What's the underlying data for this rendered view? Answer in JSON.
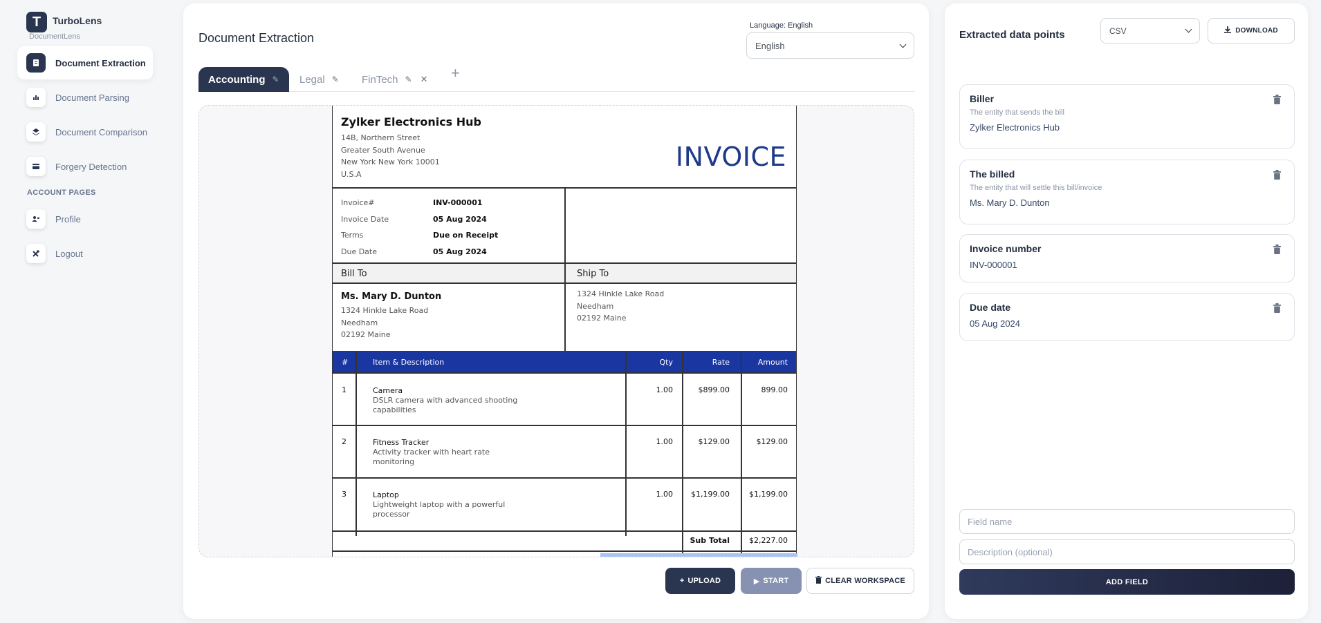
{
  "brand": {
    "name": "TurboLens",
    "sub": "DocumentLens"
  },
  "sidebar": {
    "items": [
      {
        "label": "Document Extraction",
        "icon": "document-icon"
      },
      {
        "label": "Document Parsing",
        "icon": "chart-icon"
      },
      {
        "label": "Document Comparison",
        "icon": "layers-icon"
      },
      {
        "label": "Forgery Detection",
        "icon": "card-icon"
      }
    ],
    "section": "ACCOUNT PAGES",
    "account": [
      {
        "label": "Profile",
        "icon": "user-icon"
      },
      {
        "label": "Logout",
        "icon": "tools-icon"
      }
    ]
  },
  "main": {
    "title": "Document Extraction",
    "language_label": "Language: English",
    "language_value": "English",
    "tabs": [
      {
        "label": "Accounting"
      },
      {
        "label": "Legal"
      },
      {
        "label": "FinTech"
      }
    ],
    "buttons": {
      "upload": "UPLOAD",
      "start": "START",
      "clear": "CLEAR WORKSPACE"
    }
  },
  "invoice": {
    "company": "Zylker Electronics Hub",
    "address": [
      "14B, Northern Street",
      "Greater South Avenue",
      "New York New York 10001",
      "U.S.A"
    ],
    "title": "INVOICE",
    "meta": [
      {
        "k": "Invoice#",
        "v": "INV-000001"
      },
      {
        "k": "Invoice Date",
        "v": "05 Aug 2024"
      },
      {
        "k": "Terms",
        "v": "Due on Receipt"
      },
      {
        "k": "Due Date",
        "v": "05 Aug 2024"
      }
    ],
    "bill_to_label": "Bill To",
    "ship_to_label": "Ship To",
    "bill_name": "Ms. Mary D. Dunton",
    "bill_address": [
      "1324 Hinkle Lake Road",
      "Needham",
      "02192 Maine"
    ],
    "ship_address": [
      "1324 Hinkle Lake Road",
      "Needham",
      "02192 Maine"
    ],
    "columns": {
      "num": "#",
      "item": "Item & Description",
      "qty": "Qty",
      "rate": "Rate",
      "amount": "Amount"
    },
    "items": [
      {
        "n": "1",
        "name": "Camera",
        "desc": "DSLR camera with advanced shooting capabilities",
        "qty": "1.00",
        "rate": "$899.00",
        "amount": "899.00"
      },
      {
        "n": "2",
        "name": "Fitness Tracker",
        "desc": "Activity tracker with heart rate monitoring",
        "qty": "1.00",
        "rate": "$129.00",
        "amount": "$129.00"
      },
      {
        "n": "3",
        "name": "Laptop",
        "desc": "Lightweight laptop with a powerful processor",
        "qty": "1.00",
        "rate": "$1,199.00",
        "amount": "$1,199.00"
      }
    ],
    "subtotal_label": "Sub Total",
    "subtotal_value": "$2,227.00"
  },
  "right": {
    "title": "Extracted data points",
    "format_value": "CSV",
    "download_label": "DOWNLOAD",
    "fields": [
      {
        "title": "Biller",
        "desc": "The entity that sends the bill",
        "value": "Zylker Electronics Hub"
      },
      {
        "title": "The billed",
        "desc": "The entity that will settle this bill/invoice",
        "value": "Ms. Mary D. Dunton"
      },
      {
        "title": "Invoice number",
        "desc": "",
        "value": "INV-000001"
      },
      {
        "title": "Due date",
        "desc": "",
        "value": "05 Aug 2024"
      }
    ],
    "field_name_placeholder": "Field name",
    "description_placeholder": "Description (optional)",
    "add_field_label": "ADD FIELD"
  },
  "colors": {
    "primary": "#2a3550",
    "invoice_blue": "#1a36a0",
    "start_disabled": "#8792b3"
  }
}
